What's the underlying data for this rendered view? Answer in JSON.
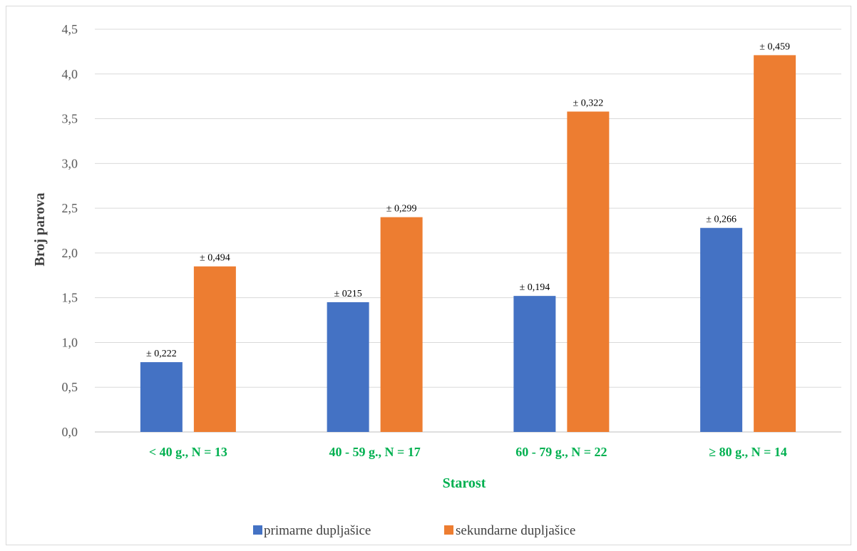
{
  "chart_data": {
    "type": "bar",
    "categories": [
      "< 40 g., N = 13",
      "40 - 59 g., N = 17",
      "60 - 79 g., N = 22",
      "≥ 80 g., N = 14"
    ],
    "series": [
      {
        "name": "primarne dupljašice",
        "color": "#4472c4",
        "values": [
          0.78,
          1.45,
          1.52,
          2.28
        ],
        "labels": [
          "± 0,222",
          "± 0215",
          "± 0,194",
          "± 0,266"
        ]
      },
      {
        "name": "sekundarne dupljašice",
        "color": "#ed7d31",
        "values": [
          1.85,
          2.4,
          3.58,
          4.21
        ],
        "labels": [
          "± 0,494",
          "± 0,299",
          "± 0,322",
          "± 0,459"
        ]
      }
    ],
    "xlabel": "Starost",
    "ylabel": "Broj parova",
    "ylim": [
      0,
      4.5
    ],
    "yticks": [
      "0,0",
      "0,5",
      "1,0",
      "1,5",
      "2,0",
      "2,5",
      "3,0",
      "3,5",
      "4,0",
      "4,5"
    ],
    "grid": true,
    "legend_position": "bottom",
    "category_color": "#00b050"
  }
}
